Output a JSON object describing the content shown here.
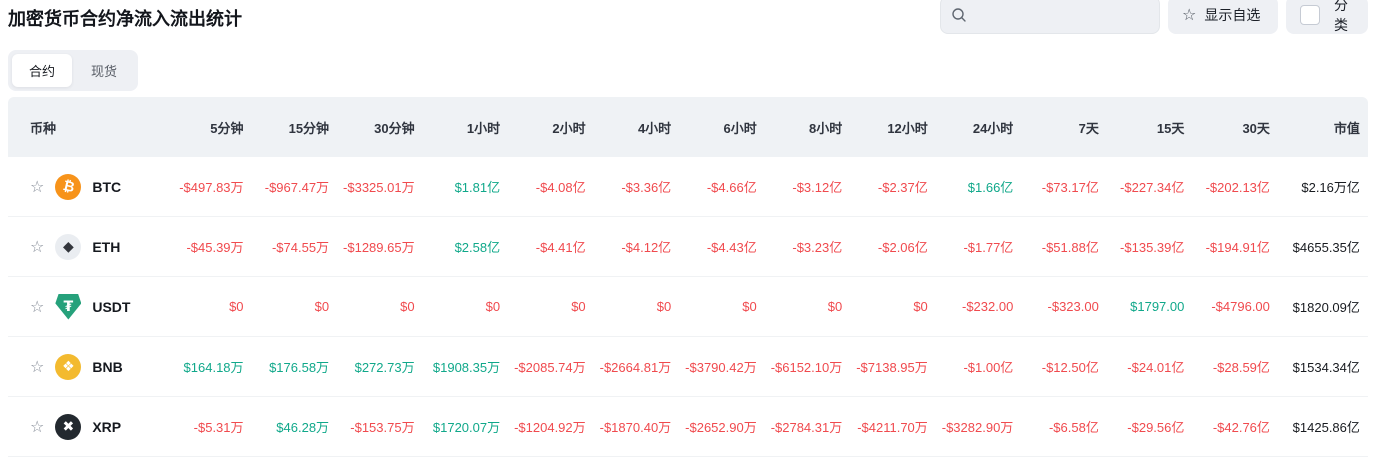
{
  "header": {
    "title": "加密货币合约净流入流出统计",
    "search_placeholder": "",
    "search_value": "",
    "favorites_label": "显示自选",
    "category_label": "分类",
    "category_checked": false,
    "star_glyph": "☆"
  },
  "tabs": [
    {
      "label": "合约",
      "active": true
    },
    {
      "label": "现货",
      "active": false
    }
  ],
  "colors": {
    "up": "#10A88A",
    "down": "#F04A4E",
    "header_bg": "#EFF2F5",
    "control_bg": "#EEF0F4"
  },
  "table": {
    "columns": [
      "币种",
      "5分钟",
      "15分钟",
      "30分钟",
      "1小时",
      "2小时",
      "4小时",
      "6小时",
      "8小时",
      "12小时",
      "24小时",
      "7天",
      "15天",
      "30天",
      "市值"
    ],
    "rows": [
      {
        "symbol": "BTC",
        "icon": {
          "name": "btc-icon",
          "glyph": "₿",
          "bg": "#F7931A",
          "fg": "#FFFFFF",
          "shape": "circle",
          "tilt": true
        },
        "values": [
          {
            "text": "-$497.83万",
            "dir": "down"
          },
          {
            "text": "-$967.47万",
            "dir": "down"
          },
          {
            "text": "-$3325.01万",
            "dir": "down"
          },
          {
            "text": "$1.81亿",
            "dir": "up"
          },
          {
            "text": "-$4.08亿",
            "dir": "down"
          },
          {
            "text": "-$3.36亿",
            "dir": "down"
          },
          {
            "text": "-$4.66亿",
            "dir": "down"
          },
          {
            "text": "-$3.12亿",
            "dir": "down"
          },
          {
            "text": "-$2.37亿",
            "dir": "down"
          },
          {
            "text": "$1.66亿",
            "dir": "up"
          },
          {
            "text": "-$73.17亿",
            "dir": "down"
          },
          {
            "text": "-$227.34亿",
            "dir": "down"
          },
          {
            "text": "-$202.13亿",
            "dir": "down"
          }
        ],
        "market_cap": "$2.16万亿"
      },
      {
        "symbol": "ETH",
        "icon": {
          "name": "eth-icon",
          "glyph": "◆",
          "bg": "#EAEDF1",
          "fg": "#33363C",
          "shape": "circle",
          "tilt": false
        },
        "values": [
          {
            "text": "-$45.39万",
            "dir": "down"
          },
          {
            "text": "-$74.55万",
            "dir": "down"
          },
          {
            "text": "-$1289.65万",
            "dir": "down"
          },
          {
            "text": "$2.58亿",
            "dir": "up"
          },
          {
            "text": "-$4.41亿",
            "dir": "down"
          },
          {
            "text": "-$4.12亿",
            "dir": "down"
          },
          {
            "text": "-$4.43亿",
            "dir": "down"
          },
          {
            "text": "-$3.23亿",
            "dir": "down"
          },
          {
            "text": "-$2.06亿",
            "dir": "down"
          },
          {
            "text": "-$1.77亿",
            "dir": "down"
          },
          {
            "text": "-$51.88亿",
            "dir": "down"
          },
          {
            "text": "-$135.39亿",
            "dir": "down"
          },
          {
            "text": "-$194.91亿",
            "dir": "down"
          }
        ],
        "market_cap": "$4655.35亿"
      },
      {
        "symbol": "USDT",
        "icon": {
          "name": "usdt-icon",
          "glyph": "₮",
          "bg": "#26A17B",
          "fg": "#FFFFFF",
          "shape": "shield",
          "tilt": false
        },
        "values": [
          {
            "text": "$0",
            "dir": "down"
          },
          {
            "text": "$0",
            "dir": "down"
          },
          {
            "text": "$0",
            "dir": "down"
          },
          {
            "text": "$0",
            "dir": "down"
          },
          {
            "text": "$0",
            "dir": "down"
          },
          {
            "text": "$0",
            "dir": "down"
          },
          {
            "text": "$0",
            "dir": "down"
          },
          {
            "text": "$0",
            "dir": "down"
          },
          {
            "text": "$0",
            "dir": "down"
          },
          {
            "text": "-$232.00",
            "dir": "down"
          },
          {
            "text": "-$323.00",
            "dir": "down"
          },
          {
            "text": "$1797.00",
            "dir": "up"
          },
          {
            "text": "-$4796.00",
            "dir": "down"
          }
        ],
        "market_cap": "$1820.09亿"
      },
      {
        "symbol": "BNB",
        "icon": {
          "name": "bnb-icon",
          "glyph": "❖",
          "bg": "#F3BA2F",
          "fg": "#FFFFFF",
          "shape": "circle",
          "tilt": false
        },
        "values": [
          {
            "text": "$164.18万",
            "dir": "up"
          },
          {
            "text": "$176.58万",
            "dir": "up"
          },
          {
            "text": "$272.73万",
            "dir": "up"
          },
          {
            "text": "$1908.35万",
            "dir": "up"
          },
          {
            "text": "-$2085.74万",
            "dir": "down"
          },
          {
            "text": "-$2664.81万",
            "dir": "down"
          },
          {
            "text": "-$3790.42万",
            "dir": "down"
          },
          {
            "text": "-$6152.10万",
            "dir": "down"
          },
          {
            "text": "-$7138.95万",
            "dir": "down"
          },
          {
            "text": "-$1.00亿",
            "dir": "down"
          },
          {
            "text": "-$12.50亿",
            "dir": "down"
          },
          {
            "text": "-$24.01亿",
            "dir": "down"
          },
          {
            "text": "-$28.59亿",
            "dir": "down"
          }
        ],
        "market_cap": "$1534.34亿"
      },
      {
        "symbol": "XRP",
        "icon": {
          "name": "xrp-icon",
          "glyph": "✖",
          "bg": "#23292F",
          "fg": "#FFFFFF",
          "shape": "circle",
          "tilt": false
        },
        "values": [
          {
            "text": "-$5.31万",
            "dir": "down"
          },
          {
            "text": "$46.28万",
            "dir": "up"
          },
          {
            "text": "-$153.75万",
            "dir": "down"
          },
          {
            "text": "$1720.07万",
            "dir": "up"
          },
          {
            "text": "-$1204.92万",
            "dir": "down"
          },
          {
            "text": "-$1870.40万",
            "dir": "down"
          },
          {
            "text": "-$2652.90万",
            "dir": "down"
          },
          {
            "text": "-$2784.31万",
            "dir": "down"
          },
          {
            "text": "-$4211.70万",
            "dir": "down"
          },
          {
            "text": "-$3282.90万",
            "dir": "down"
          },
          {
            "text": "-$6.58亿",
            "dir": "down"
          },
          {
            "text": "-$29.56亿",
            "dir": "down"
          },
          {
            "text": "-$42.76亿",
            "dir": "down"
          }
        ],
        "market_cap": "$1425.86亿"
      }
    ]
  }
}
